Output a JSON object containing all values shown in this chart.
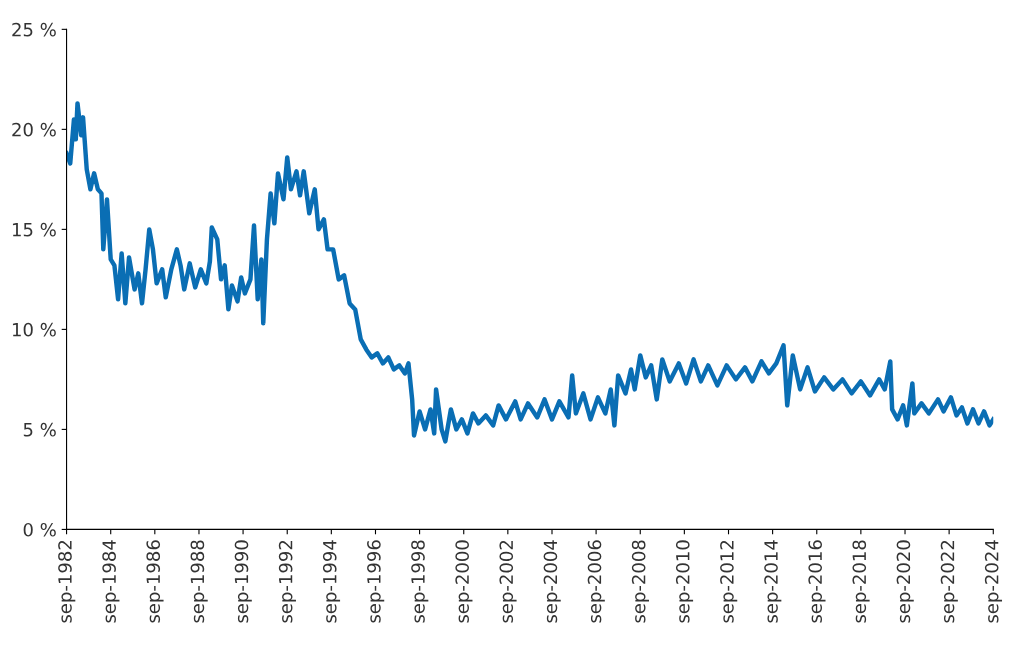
{
  "chart_data": {
    "type": "line",
    "line_style": "solid",
    "grid": false,
    "legend": false,
    "x": [
      "1982-09",
      "1982-11",
      "1983-01",
      "1983-02",
      "1983-03",
      "1983-05",
      "1983-06",
      "1983-08",
      "1983-10",
      "1983-12",
      "1984-02",
      "1984-04",
      "1984-05",
      "1984-07",
      "1984-09",
      "1984-11",
      "1985-01",
      "1985-03",
      "1985-05",
      "1985-07",
      "1985-10",
      "1985-12",
      "1986-02",
      "1986-04",
      "1986-06",
      "1986-08",
      "1986-10",
      "1987-01",
      "1987-03",
      "1987-06",
      "1987-09",
      "1987-11",
      "1988-01",
      "1988-04",
      "1988-07",
      "1988-10",
      "1989-01",
      "1989-03",
      "1989-04",
      "1989-07",
      "1989-09",
      "1989-11",
      "1990-01",
      "1990-03",
      "1990-06",
      "1990-08",
      "1990-10",
      "1991-01",
      "1991-03",
      "1991-05",
      "1991-07",
      "1991-08",
      "1991-10",
      "1991-12",
      "1992-02",
      "1992-04",
      "1992-07",
      "1992-09",
      "1992-11",
      "1993-02",
      "1993-04",
      "1993-06",
      "1993-09",
      "1993-12",
      "1994-02",
      "1994-05",
      "1994-07",
      "1994-10",
      "1995-01",
      "1995-04",
      "1995-07",
      "1995-10",
      "1996-01",
      "1996-04",
      "1996-07",
      "1996-10",
      "1997-01",
      "1997-04",
      "1997-07",
      "1997-10",
      "1998-01",
      "1998-03",
      "1998-05",
      "1998-06",
      "1998-09",
      "1998-12",
      "1999-03",
      "1999-05",
      "1999-06",
      "1999-09",
      "1999-11",
      "2000-02",
      "2000-05",
      "2000-08",
      "2000-11",
      "2001-02",
      "2001-05",
      "2001-09",
      "2002-01",
      "2002-04",
      "2002-08",
      "2003-01",
      "2003-04",
      "2003-08",
      "2004-01",
      "2004-05",
      "2004-09",
      "2005-01",
      "2005-06",
      "2005-08",
      "2005-10",
      "2006-02",
      "2006-06",
      "2006-10",
      "2007-02",
      "2007-05",
      "2007-07",
      "2007-09",
      "2008-01",
      "2008-04",
      "2008-06",
      "2008-09",
      "2008-12",
      "2009-03",
      "2009-06",
      "2009-09",
      "2010-01",
      "2010-06",
      "2010-10",
      "2011-02",
      "2011-06",
      "2011-10",
      "2012-03",
      "2012-08",
      "2013-01",
      "2013-06",
      "2013-10",
      "2014-03",
      "2014-07",
      "2014-11",
      "2015-03",
      "2015-05",
      "2015-08",
      "2015-12",
      "2016-04",
      "2016-08",
      "2017-01",
      "2017-06",
      "2017-11",
      "2018-04",
      "2018-09",
      "2019-02",
      "2019-07",
      "2019-10",
      "2020-01",
      "2020-02",
      "2020-05",
      "2020-08",
      "2020-10",
      "2021-01",
      "2021-02",
      "2021-06",
      "2021-10",
      "2022-03",
      "2022-06",
      "2022-10",
      "2023-01",
      "2023-04",
      "2023-07",
      "2023-10",
      "2024-01",
      "2024-04",
      "2024-07",
      "2024-09"
    ],
    "series": [
      {
        "color": "#0a6eb4",
        "values": [
          18.8,
          18.3,
          20.5,
          19.5,
          21.3,
          19.7,
          20.6,
          18.0,
          17.0,
          17.8,
          17.0,
          16.8,
          14.0,
          16.5,
          13.5,
          13.2,
          11.5,
          13.8,
          11.3,
          13.6,
          12.0,
          12.8,
          11.3,
          13.0,
          15.0,
          14.0,
          12.3,
          13.0,
          11.6,
          13.0,
          14.0,
          13.2,
          12.0,
          13.3,
          12.1,
          13.0,
          12.3,
          13.4,
          15.1,
          14.5,
          12.5,
          13.2,
          11.0,
          12.2,
          11.4,
          12.6,
          11.8,
          12.5,
          15.2,
          11.5,
          13.5,
          10.3,
          14.5,
          16.8,
          15.3,
          17.8,
          16.5,
          18.6,
          17.0,
          17.9,
          16.7,
          17.9,
          15.8,
          17.0,
          15.0,
          15.5,
          14.0,
          14.0,
          12.5,
          12.7,
          11.3,
          11.0,
          9.5,
          9.0,
          8.6,
          8.8,
          8.3,
          8.6,
          8.0,
          8.2,
          7.8,
          8.3,
          6.5,
          4.7,
          5.9,
          5.0,
          6.0,
          4.8,
          7.0,
          5.0,
          4.4,
          6.0,
          5.0,
          5.5,
          4.8,
          5.8,
          5.3,
          5.7,
          5.2,
          6.2,
          5.5,
          6.4,
          5.5,
          6.3,
          5.6,
          6.5,
          5.5,
          6.4,
          5.6,
          7.7,
          5.8,
          6.8,
          5.5,
          6.6,
          5.8,
          7.0,
          5.2,
          7.7,
          6.8,
          8.0,
          7.0,
          8.7,
          7.6,
          8.2,
          6.5,
          8.5,
          7.4,
          8.3,
          7.3,
          8.5,
          7.4,
          8.2,
          7.2,
          8.2,
          7.5,
          8.1,
          7.4,
          8.4,
          7.8,
          8.3,
          9.2,
          6.2,
          8.7,
          7.0,
          8.1,
          6.9,
          7.6,
          7.0,
          7.5,
          6.8,
          7.4,
          6.7,
          7.5,
          7.0,
          8.4,
          6.0,
          5.5,
          6.2,
          5.2,
          7.3,
          5.8,
          6.3,
          5.8,
          6.5,
          5.9,
          6.6,
          5.7,
          6.1,
          5.3,
          6.0,
          5.3,
          5.9,
          5.2,
          5.5
        ]
      }
    ],
    "xlim": [
      "1982-09",
      "2024-09"
    ],
    "xticks": [
      {
        "value": "1982-09",
        "label": "sep-1982"
      },
      {
        "value": "1984-09",
        "label": "sep-1984"
      },
      {
        "value": "1986-09",
        "label": "sep-1986"
      },
      {
        "value": "1988-09",
        "label": "sep-1988"
      },
      {
        "value": "1990-09",
        "label": "sep-1990"
      },
      {
        "value": "1992-09",
        "label": "sep-1992"
      },
      {
        "value": "1994-09",
        "label": "sep-1994"
      },
      {
        "value": "1996-09",
        "label": "sep-1996"
      },
      {
        "value": "1998-09",
        "label": "sep-1998"
      },
      {
        "value": "2000-09",
        "label": "sep-2000"
      },
      {
        "value": "2002-09",
        "label": "sep-2002"
      },
      {
        "value": "2004-09",
        "label": "sep-2004"
      },
      {
        "value": "2006-09",
        "label": "sep-2006"
      },
      {
        "value": "2008-09",
        "label": "sep-2008"
      },
      {
        "value": "2010-09",
        "label": "sep-2010"
      },
      {
        "value": "2012-09",
        "label": "sep-2012"
      },
      {
        "value": "2014-09",
        "label": "sep-2014"
      },
      {
        "value": "2016-09",
        "label": "sep-2016"
      },
      {
        "value": "2018-09",
        "label": "sep-2018"
      },
      {
        "value": "2020-09",
        "label": "sep-2020"
      },
      {
        "value": "2022-09",
        "label": "sep-2022"
      },
      {
        "value": "2024-09",
        "label": "sep-2024"
      }
    ],
    "ylim": [
      0,
      25
    ],
    "yticks": [
      {
        "value": 0,
        "label": "0 %"
      },
      {
        "value": 5,
        "label": "5 %"
      },
      {
        "value": 10,
        "label": "10 %"
      },
      {
        "value": 15,
        "label": "15 %"
      },
      {
        "value": 20,
        "label": "20 %"
      },
      {
        "value": 25,
        "label": "25 %"
      }
    ]
  }
}
